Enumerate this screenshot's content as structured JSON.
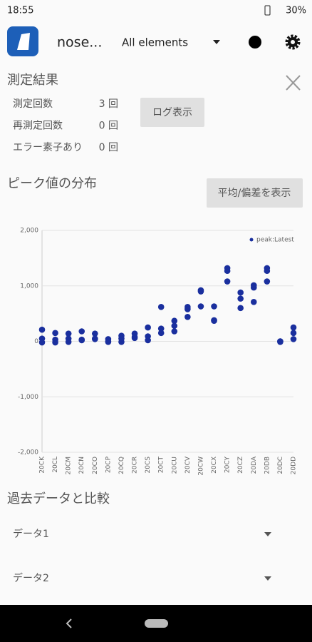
{
  "status_bar": {
    "time": "18:55",
    "battery": "30%"
  },
  "app_bar": {
    "title": "nose...",
    "selector": "All elements"
  },
  "results": {
    "title": "測定結果",
    "rows": [
      [
        "測定回数",
        "3 回"
      ],
      [
        "再測定回数",
        "0 回"
      ],
      [
        "エラー素子あり",
        "0 回"
      ]
    ],
    "button": "ログ表示"
  },
  "distribution": {
    "title": "ピーク値の分布",
    "button": "平均/偏差を表示"
  },
  "chart_data": {
    "type": "scatter",
    "categories": [
      "20CK",
      "20CL",
      "20CM",
      "20CN",
      "20CO",
      "20CP",
      "20CQ",
      "20CR",
      "20CS",
      "20CT",
      "20CU",
      "20CV",
      "20CW",
      "20CX",
      "20CY",
      "20CZ",
      "20DA",
      "20DB",
      "20DC",
      "20DD"
    ],
    "series": [
      {
        "name": "peak:Latest",
        "color": "#1a2f9e",
        "values": [
          [
            210,
            50,
            -20
          ],
          [
            150,
            30,
            -20
          ],
          [
            140,
            50,
            -10
          ],
          [
            180,
            30,
            20
          ],
          [
            140,
            50,
            40
          ],
          [
            40,
            -10,
            0
          ],
          [
            100,
            -10,
            50
          ],
          [
            140,
            60,
            80
          ],
          [
            250,
            90,
            20
          ],
          [
            620,
            230,
            150
          ],
          [
            370,
            280,
            180
          ],
          [
            620,
            580,
            440
          ],
          [
            920,
            900,
            630
          ],
          [
            630,
            380,
            370
          ],
          [
            1320,
            1270,
            1080
          ],
          [
            880,
            770,
            600
          ],
          [
            1010,
            970,
            710
          ],
          [
            1320,
            1270,
            1080
          ],
          [
            0,
            -10,
            0
          ],
          [
            250,
            150,
            40
          ]
        ]
      }
    ],
    "ylim": [
      -2000,
      2000
    ],
    "yticks": [
      {
        "value": -2000,
        "label": "-2,000"
      },
      {
        "value": -1000,
        "label": "-1,000"
      },
      0,
      {
        "value": 1000,
        "label": "1,000"
      },
      {
        "value": 2000,
        "label": "2,000"
      }
    ],
    "grid": true,
    "legend": "upper right"
  },
  "compare": {
    "title": "過去データと比較",
    "dropdowns": [
      "データ1",
      "データ2"
    ]
  }
}
